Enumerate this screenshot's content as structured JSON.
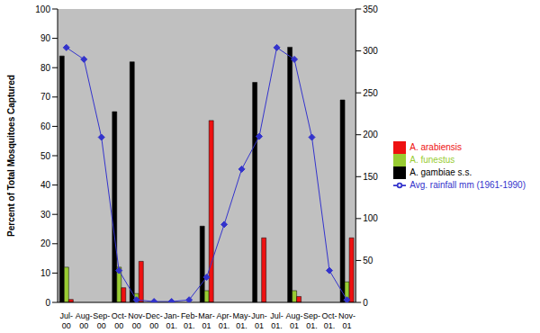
{
  "chart_data": {
    "type": "bar",
    "y_label": "Percent of Total Mosquitoes Captured",
    "categories": [
      "Jul-00",
      "Aug-00",
      "Sep-00",
      "Oct-00",
      "Nov-00",
      "Dec-00",
      "Jan-01.",
      "Feb-01.",
      "Mar-01",
      "Apr-01.",
      "May-01.",
      "Jun-01",
      "Jul-01.",
      "Aug-01",
      "Sep-01.",
      "Oct-01.",
      "Nov-01"
    ],
    "series": [
      {
        "name": "A. gambiae s.s.",
        "color": "#000000",
        "values": [
          84,
          null,
          null,
          65,
          82,
          null,
          null,
          null,
          26,
          null,
          null,
          75,
          null,
          87,
          null,
          null,
          69
        ]
      },
      {
        "name": "A. funestus",
        "color": "#99cc33",
        "values": [
          12,
          null,
          null,
          12,
          3,
          null,
          null,
          null,
          4,
          null,
          null,
          0,
          null,
          4,
          null,
          null,
          7
        ]
      },
      {
        "name": "A. arabiensis",
        "color": "#ee1111",
        "values": [
          1,
          null,
          null,
          5,
          14,
          null,
          null,
          null,
          62,
          null,
          null,
          22,
          null,
          2,
          null,
          null,
          22
        ]
      },
      {
        "name": "Avg. rainfall mm (1961-1990)",
        "color": "#3333cc",
        "type": "line",
        "axis": "y2",
        "marker": "diamond",
        "values": [
          304,
          290,
          197,
          38,
          3,
          1,
          1,
          3,
          30,
          93,
          159,
          198,
          304,
          290,
          197,
          38,
          3
        ]
      }
    ],
    "ylim": [
      0,
      100
    ],
    "yticks": [
      0,
      10,
      20,
      30,
      40,
      50,
      60,
      70,
      80,
      90,
      100
    ],
    "y2lim": [
      0,
      350
    ],
    "y2ticks": [
      0,
      50,
      100,
      150,
      200,
      250,
      300,
      350
    ],
    "grid": false,
    "legend": "right"
  }
}
